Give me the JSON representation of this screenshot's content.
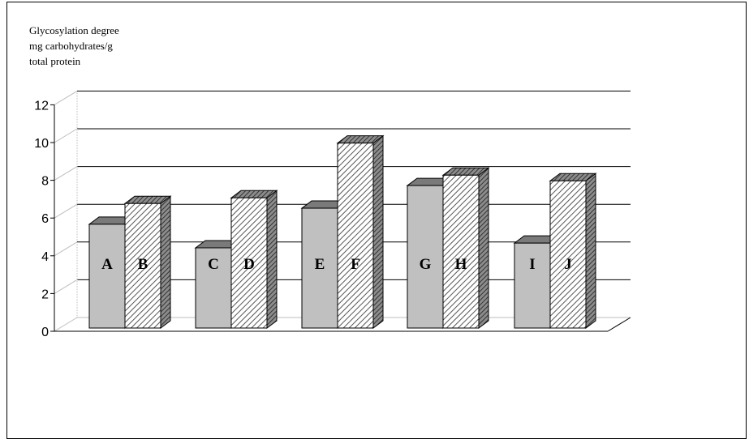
{
  "chart_data": {
    "type": "bar",
    "subtype": "3d-clustered",
    "title": "",
    "ylabel_lines": [
      "Glycosylation degree",
      "mg carbohydrates/g",
      "total protein"
    ],
    "xlabel": "",
    "ylim": [
      0,
      12
    ],
    "yticks": [
      0,
      2,
      4,
      6,
      8,
      10,
      12
    ],
    "grid": true,
    "legend": "none",
    "colors": {
      "solid": "#c0c0c0",
      "solid_dark": "#7a7a7a",
      "hatched_base": "#ffffff",
      "hatched_line": "#555555"
    },
    "pairs": [
      {
        "bars": [
          {
            "label": "A",
            "value": 5.5
          },
          {
            "label": "B",
            "value": 6.6
          }
        ]
      },
      {
        "bars": [
          {
            "label": "C",
            "value": 4.25
          },
          {
            "label": "D",
            "value": 6.9
          }
        ]
      },
      {
        "bars": [
          {
            "label": "E",
            "value": 6.35
          },
          {
            "label": "F",
            "value": 9.8
          }
        ]
      },
      {
        "bars": [
          {
            "label": "G",
            "value": 7.55
          },
          {
            "label": "H",
            "value": 8.1
          }
        ]
      },
      {
        "bars": [
          {
            "label": "I",
            "value": 4.5
          },
          {
            "label": "J",
            "value": 7.8
          }
        ]
      }
    ]
  }
}
